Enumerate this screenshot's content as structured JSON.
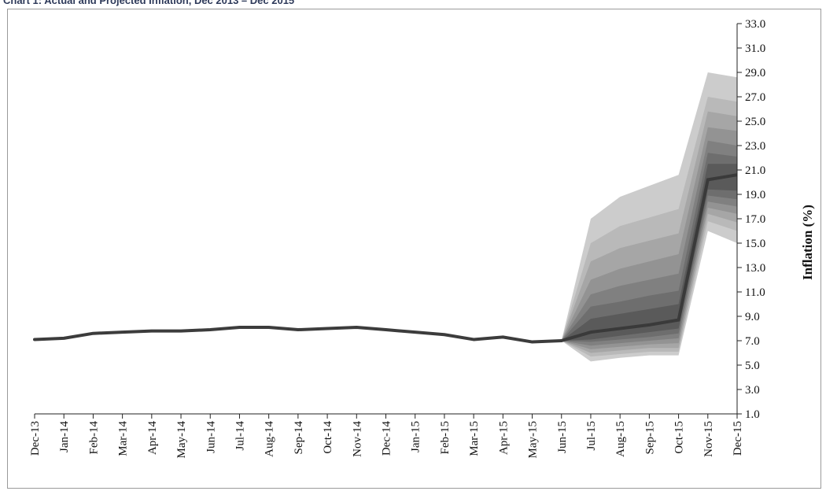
{
  "page": {
    "title": "Chart 1: Actual and Projected Inflation, Dec 2013 – Dec 2015"
  },
  "chart_data": {
    "type": "area",
    "title": "Chart 1: Actual and Projected Inflation, Dec 2013 – Dec 2015",
    "xlabel": "",
    "ylabel": "Inflation (%)",
    "ylim": [
      1.0,
      33.0
    ],
    "y_ticks": [
      "1.0",
      "3.0",
      "5.0",
      "7.0",
      "9.0",
      "11.0",
      "13.0",
      "15.0",
      "17.0",
      "19.0",
      "21.0",
      "23.0",
      "25.0",
      "27.0",
      "29.0",
      "31.0",
      "33.0"
    ],
    "y_axis_position": "right",
    "grid": false,
    "legend": "none",
    "categories": [
      "Dec-13",
      "Jan-14",
      "Feb-14",
      "Mar-14",
      "Apr-14",
      "May-14",
      "Jun-14",
      "Jul-14",
      "Aug-14",
      "Sep-14",
      "Oct-14",
      "Nov-14",
      "Dec-14",
      "Jan-15",
      "Feb-15",
      "Mar-15",
      "Apr-15",
      "May-15",
      "Jun-15",
      "Jul-15",
      "Aug-15",
      "Sep-15",
      "Oct-15",
      "Nov-15",
      "Dec-15"
    ],
    "actual": [
      7.1,
      7.2,
      7.6,
      7.7,
      7.8,
      7.8,
      7.9,
      8.1,
      8.1,
      7.9,
      8.0,
      8.1,
      7.9,
      7.7,
      7.5,
      7.1,
      7.3,
      6.9,
      7.0
    ],
    "fan": {
      "start_category": "Jun-15",
      "categories": [
        "Jun-15",
        "Jul-15",
        "Aug-15",
        "Sep-15",
        "Oct-15",
        "Nov-15",
        "Dec-15"
      ],
      "central": [
        7.0,
        7.7,
        8.0,
        8.3,
        8.7,
        20.2,
        20.6
      ],
      "bands": [
        {
          "lower": [
            7.0,
            5.3,
            5.6,
            5.8,
            5.8,
            16.0,
            15.0
          ],
          "upper": [
            7.0,
            17.0,
            18.8,
            19.7,
            20.6,
            29.0,
            28.6
          ]
        },
        {
          "lower": [
            7.0,
            5.7,
            5.9,
            6.1,
            6.1,
            16.8,
            16.0
          ],
          "upper": [
            7.0,
            15.0,
            16.4,
            17.1,
            17.8,
            27.0,
            26.6
          ]
        },
        {
          "lower": [
            7.0,
            6.0,
            6.2,
            6.4,
            6.4,
            17.4,
            16.7
          ],
          "upper": [
            7.0,
            13.5,
            14.6,
            15.2,
            15.8,
            25.8,
            25.4
          ]
        },
        {
          "lower": [
            7.0,
            6.3,
            6.5,
            6.7,
            6.8,
            17.9,
            17.4
          ],
          "upper": [
            7.0,
            12.0,
            12.9,
            13.5,
            14.1,
            24.5,
            24.2
          ]
        },
        {
          "lower": [
            7.0,
            6.6,
            6.8,
            7.0,
            7.2,
            18.4,
            18.0
          ],
          "upper": [
            7.0,
            10.8,
            11.5,
            12.0,
            12.5,
            23.4,
            23.0
          ]
        },
        {
          "lower": [
            7.0,
            6.9,
            7.1,
            7.3,
            7.6,
            18.9,
            18.6
          ],
          "upper": [
            7.0,
            9.8,
            10.2,
            10.7,
            11.1,
            22.4,
            22.1
          ]
        },
        {
          "lower": [
            7.0,
            7.1,
            7.4,
            7.7,
            8.0,
            19.4,
            19.3
          ],
          "upper": [
            7.0,
            8.8,
            9.2,
            9.6,
            10.0,
            21.5,
            21.5
          ]
        }
      ],
      "band_colors": [
        "#cccccc",
        "#b9b9b9",
        "#a6a6a6",
        "#939393",
        "#808080",
        "#6e6e6e",
        "#5a5a5a"
      ],
      "central_color": "#3a3a3a"
    },
    "line_color": "#3c3c3c"
  }
}
